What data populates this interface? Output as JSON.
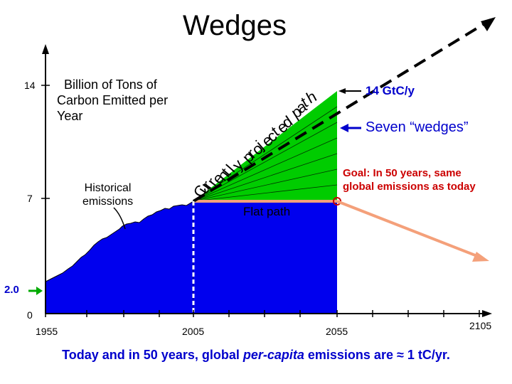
{
  "slide": {
    "title": "Wedges",
    "y_axis_label": [
      "Billion of Tons of",
      "Carbon Emitted per",
      "Year"
    ],
    "y_ticks": [
      "14",
      "7",
      "0"
    ],
    "x_ticks": [
      "1955",
      "2005",
      "2055",
      "2105"
    ],
    "historical_label": [
      "Historical",
      "emissions"
    ],
    "projected_path_letters": [
      "C",
      "u",
      "r",
      "r",
      "e",
      "n",
      "t",
      "l",
      "y",
      " ",
      "p",
      "r",
      "o",
      "j",
      "e",
      "c",
      "t",
      "e",
      "d",
      " ",
      "p",
      "a",
      "t",
      "h"
    ],
    "label_14gtc": "14 GtC/y",
    "label_wedges": "Seven “wedges”",
    "label_goal": [
      "Goal: In 50 years, same",
      "global emissions as today"
    ],
    "label_flat": "Flat path",
    "label_2_0": "2.0",
    "footer": {
      "prefix": "Today and in 50 years, global ",
      "emph": "per-capita",
      "suffix": " emissions are ≈ 1 tC/yr."
    }
  },
  "colors": {
    "wedge_green": "#00cc00",
    "fill_blue": "#0000ee",
    "goal_red": "#cc0000",
    "flat_orange": "#f4a07a",
    "text_blue": "#0000cc"
  }
}
